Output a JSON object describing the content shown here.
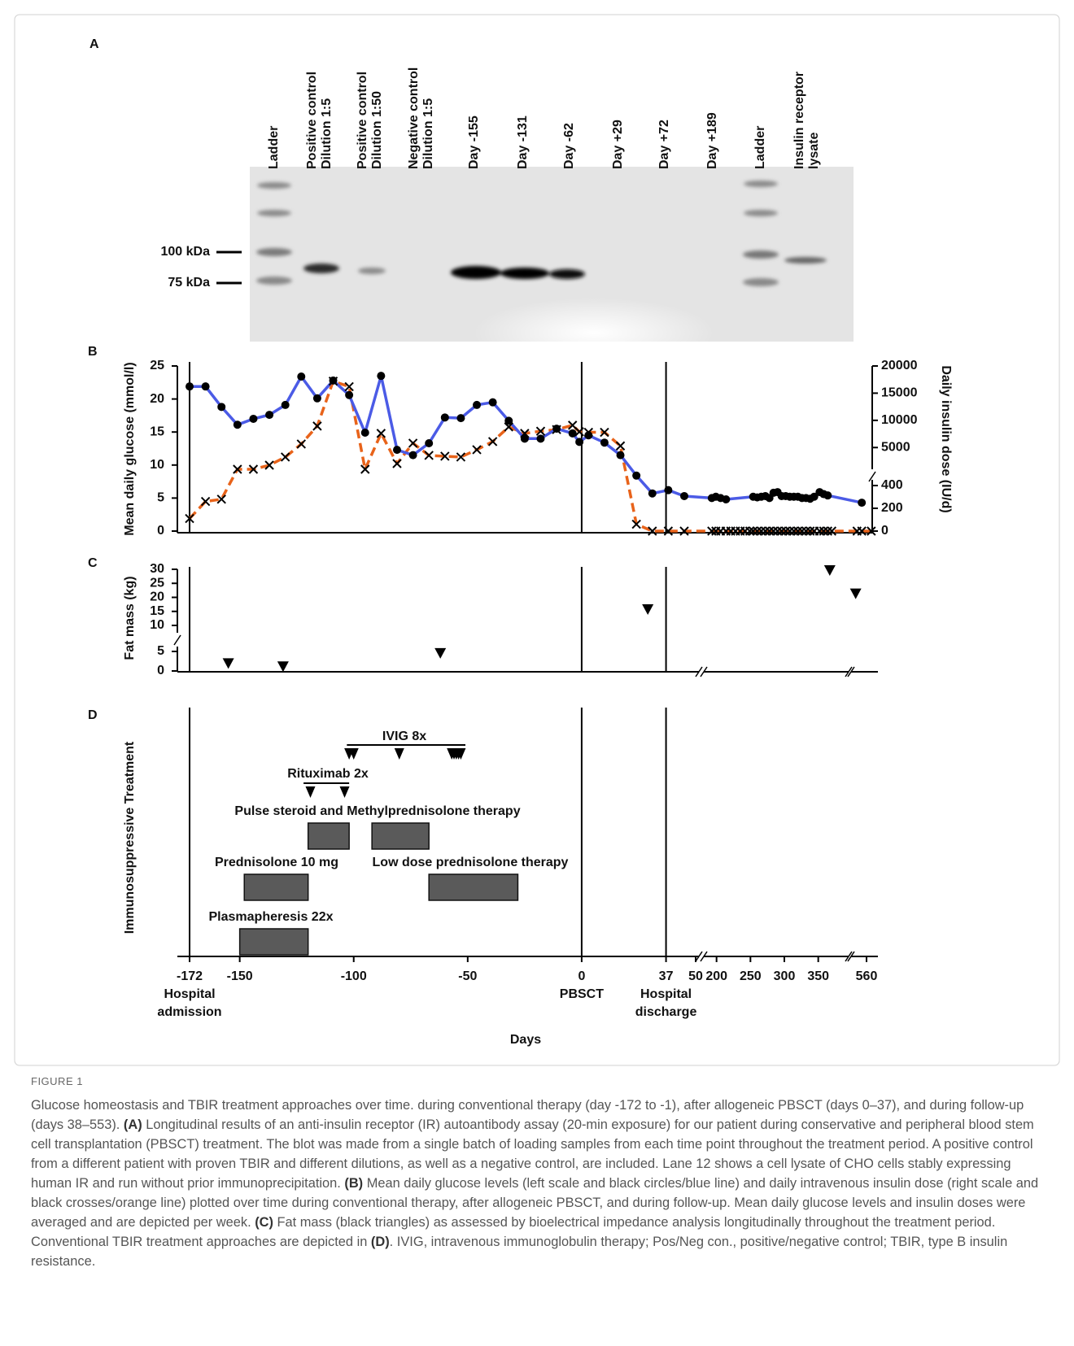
{
  "blot": {
    "panel_label": "A",
    "lanes": [
      [
        "Ladder"
      ],
      [
        "Positive control",
        "Dilution 1:5"
      ],
      [
        "Positive control",
        "Dilution 1:50"
      ],
      [
        "Negative control",
        "Dilution 1:5"
      ],
      [
        "Day -155"
      ],
      [
        "Day -131"
      ],
      [
        "Day -62"
      ],
      [
        "Day +29"
      ],
      [
        "Day +72"
      ],
      [
        "Day +189"
      ],
      [
        "Ladder"
      ],
      [
        "Insulin receptor",
        "lysate"
      ]
    ],
    "markers": [
      "100 kDa",
      "75 kDa"
    ]
  },
  "chart_data": [
    {
      "type": "line",
      "panel_label": "B",
      "ylabel": "Mean daily glucose (mmol/l)",
      "y2label": "Daily insulin dose (IU/d)",
      "x_segments": [
        [
          -172,
          50
        ],
        [
          186,
          390
        ],
        [
          542,
          572
        ]
      ],
      "ylim": [
        0,
        25
      ],
      "yticks": [
        0,
        5,
        10,
        15,
        20,
        25
      ],
      "y2_segments": [
        [
          0,
          450
        ],
        [
          1000,
          20000
        ]
      ],
      "y2ticks": [
        0,
        200,
        400,
        5000,
        10000,
        15000,
        20000
      ],
      "vlines": [
        -172,
        0,
        37
      ],
      "series": [
        {
          "color": "#4b5be6",
          "marker": "circle",
          "x": [
            -172,
            -165,
            -158,
            -151,
            -144,
            -137,
            -130,
            -123,
            -116,
            -109,
            -102,
            -95,
            -88,
            -81,
            -74,
            -67,
            -60,
            -53,
            -46,
            -39,
            -32,
            -25,
            -18,
            -11,
            -4,
            -1,
            3,
            10,
            17,
            24,
            31,
            38,
            45,
            193,
            199,
            206,
            214,
            254,
            260,
            266,
            272,
            278,
            284,
            290,
            296,
            302,
            308,
            314,
            320,
            326,
            332,
            338,
            344,
            352,
            358,
            364,
            553
          ],
          "values": [
            21.9,
            21.9,
            18.8,
            16.1,
            17.0,
            17.6,
            19.1,
            23.4,
            20.1,
            22.8,
            20.6,
            14.9,
            23.5,
            12.3,
            11.5,
            13.3,
            17.2,
            17.1,
            19.1,
            19.5,
            16.7,
            14.0,
            14.0,
            15.5,
            14.8,
            13.5,
            14.5,
            13.4,
            11.5,
            8.4,
            5.7,
            6.2,
            5.3,
            5.0,
            5.2,
            5.0,
            4.8,
            5.2,
            5.1,
            5.2,
            5.3,
            5.0,
            5.8,
            5.9,
            5.3,
            5.3,
            5.2,
            5.2,
            5.2,
            5.0,
            5.0,
            4.9,
            5.2,
            5.9,
            5.6,
            5.4,
            4.3
          ]
        },
        {
          "color": "#e8631a",
          "marker": "cross",
          "axis": "y2",
          "x": [
            -172,
            -165,
            -158,
            -151,
            -144,
            -137,
            -130,
            -123,
            -116,
            -109,
            -102,
            -95,
            -88,
            -81,
            -74,
            -67,
            -60,
            -53,
            -46,
            -39,
            -32,
            -25,
            -18,
            -11,
            -4,
            -1,
            3,
            10,
            17,
            24,
            31,
            38,
            45,
            193,
            199,
            206,
            214,
            221,
            228,
            235,
            242,
            249,
            254,
            260,
            266,
            272,
            278,
            284,
            290,
            296,
            302,
            308,
            314,
            320,
            326,
            332,
            338,
            344,
            352,
            358,
            364,
            370,
            546,
            553,
            567
          ],
          "values": [
            110,
            260,
            280,
            1000,
            1000,
            1750,
            3250,
            5650,
            8950,
            17200,
            16200,
            1000,
            7600,
            2050,
            5800,
            3550,
            3400,
            3250,
            4600,
            6100,
            8800,
            7600,
            8000,
            8300,
            9100,
            7900,
            7800,
            7800,
            5300,
            60,
            0,
            0,
            0,
            0,
            0,
            0,
            0,
            0,
            0,
            0,
            0,
            0,
            0,
            0,
            0,
            0,
            0,
            0,
            0,
            0,
            0,
            0,
            0,
            0,
            0,
            0,
            0,
            0,
            0,
            0,
            0,
            0,
            0,
            0,
            0
          ]
        }
      ]
    },
    {
      "type": "scatter",
      "panel_label": "C",
      "ylabel": "Fat mass (kg)",
      "x_segments": [
        [
          -172,
          50
        ],
        [
          186,
          390
        ],
        [
          542,
          572
        ]
      ],
      "y_segments": [
        [
          0,
          5
        ],
        [
          10,
          30
        ]
      ],
      "yticks": [
        0,
        5,
        10,
        15,
        20,
        25,
        30
      ],
      "vlines": [
        -172,
        0,
        37
      ],
      "x": [
        -155,
        -131,
        -62,
        29,
        367,
        544
      ],
      "values": [
        2.0,
        1.2,
        4.6,
        15.8,
        29.7,
        21.4
      ],
      "color": "#000000"
    },
    {
      "type": "timeline",
      "panel_label": "D",
      "ylabel": "Immunosuppressive Treatment",
      "xlabel": "Days",
      "x_segments": [
        [
          -172,
          50
        ],
        [
          186,
          390
        ],
        [
          542,
          572
        ]
      ],
      "xticks": [
        -172,
        -150,
        -100,
        -50,
        0,
        37,
        50,
        200,
        250,
        300,
        350,
        560
      ],
      "vlines": [
        -172,
        0,
        37
      ],
      "events": [
        {
          "x": -172,
          "label": [
            "Hospital",
            "admission"
          ]
        },
        {
          "x": 0,
          "label": [
            "PBSCT"
          ]
        },
        {
          "x": 37,
          "label": [
            "Hospital",
            "discharge"
          ]
        }
      ],
      "treatments": [
        {
          "label": "IVIG 8x",
          "span": [
            -103,
            -51
          ],
          "doses": [
            -102,
            -100,
            -80,
            -57,
            -56,
            -55,
            -54,
            -53
          ]
        },
        {
          "label": "Rituximab 2x",
          "span": [
            -122,
            -102
          ],
          "doses": [
            -119,
            -104
          ]
        },
        {
          "label": "Pulse steroid and Methylprednisolone therapy",
          "bars": [
            [
              -120,
              -102
            ],
            [
              -92,
              -67
            ]
          ]
        },
        {
          "label": "Prednisolone 10 mg",
          "bars": [
            [
              -148,
              -120
            ]
          ]
        },
        {
          "label": "Low dose prednisolone therapy",
          "bars": [
            [
              -67,
              -28
            ]
          ]
        },
        {
          "label": "Plasmapheresis 22x",
          "bars": [
            [
              -150,
              -120
            ]
          ]
        }
      ],
      "color": "#5a5a5a"
    }
  ],
  "caption": {
    "label": "FIGURE 1",
    "runs": [
      "Glucose homeostasis and TBIR treatment approaches over time. during conventional therapy (day -172 to -1), after allogeneic PBSCT (days 0–37), and during follow-up (days 38–553). ",
      {
        "text": "(A)",
        "style": "bold"
      },
      " Longitudinal results of an anti-insulin receptor (IR) autoantibody assay (20-min exposure) for our patient during conservative and peripheral blood stem cell transplantation (PBSCT) treatment. The blot was made from a single batch of loading samples from each time point throughout the treatment period. A positive control from a different patient with proven TBIR and different dilutions, as well as a negative control, are included. Lane 12 shows a cell lysate of CHO cells stably expressing human IR and run without prior immunoprecipitation. ",
      {
        "text": "(B)",
        "style": "bold"
      },
      " Mean daily glucose levels (left scale and black circles/blue line) and daily intravenous insulin dose (right scale and black crosses/orange line) plotted over time during conventional therapy, after allogeneic PBSCT, and during follow-up. Mean daily glucose levels and insulin doses were averaged and are depicted per week. ",
      {
        "text": "(C)",
        "style": "bold"
      },
      " Fat mass (black triangles) as assessed by bioelectrical impedance analysis longitudinally throughout the treatment period. Conventional TBIR treatment approaches are depicted in ",
      {
        "text": "(D)",
        "style": "bold"
      },
      ". IVIG, intravenous immunoglobulin therapy; Pos/Neg con., positive/negative control; TBIR, type B insulin resistance."
    ]
  }
}
